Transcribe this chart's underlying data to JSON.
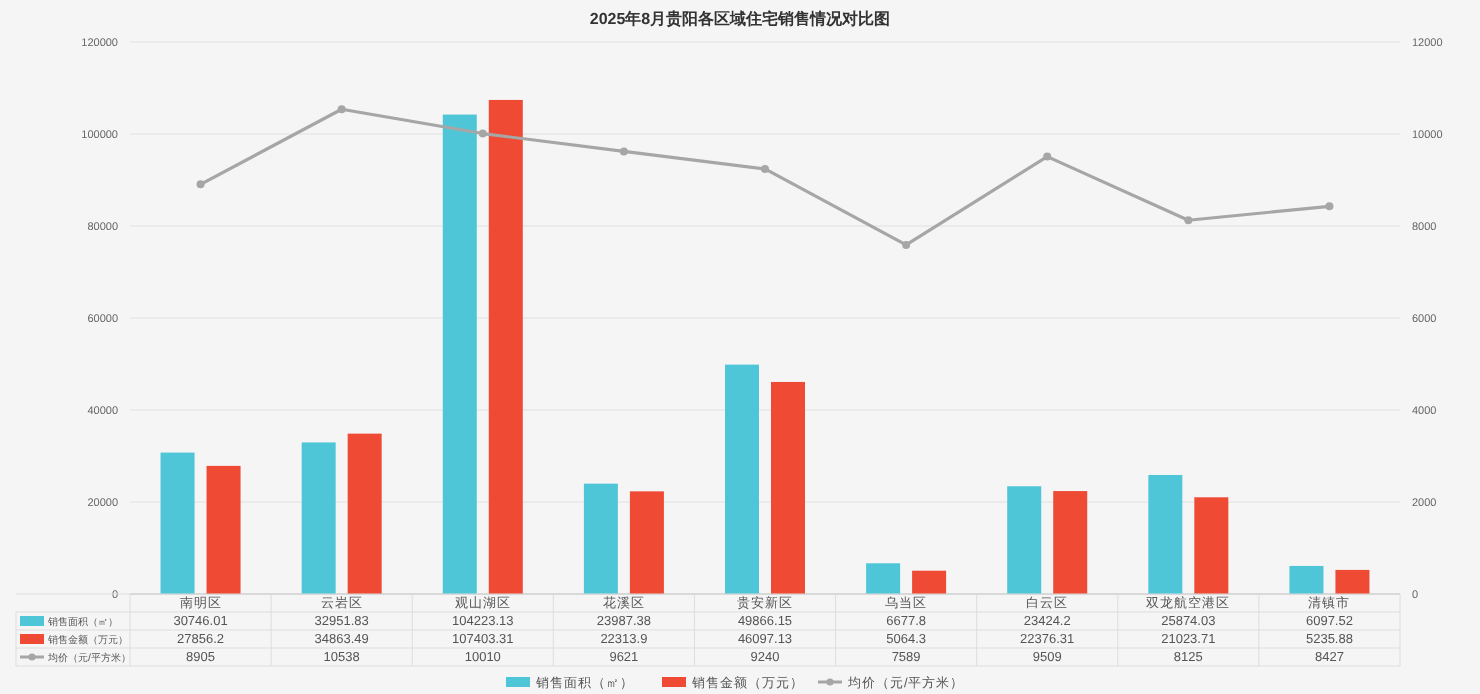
{
  "chart_data": {
    "type": "bar",
    "title": "2025年8月贵阳各区域住宅销售情况对比图",
    "categories": [
      "南明区",
      "云岩区",
      "观山湖区",
      "花溪区",
      "贵安新区",
      "乌当区",
      "白云区",
      "双龙航空港区",
      "清镇市"
    ],
    "series": [
      {
        "name": "销售面积（㎡）",
        "color": "#4fc6d8",
        "values": [
          30746.01,
          32951.83,
          104223.13,
          23987.38,
          49866.15,
          6677.8,
          23424.2,
          25874.03,
          6097.52
        ]
      },
      {
        "name": "销售金额（万元）",
        "color": "#ee4a34",
        "values": [
          27856.2,
          34863.49,
          107403.31,
          22313.9,
          46097.13,
          5064.3,
          22376.31,
          21023.71,
          5235.88
        ]
      },
      {
        "name": "均价（元/平方米）",
        "type": "line",
        "axis": "y2",
        "color": "#a6a6a6",
        "marker": "circle",
        "values": [
          8905,
          10538,
          10010,
          9621,
          9240,
          7589,
          9509,
          8125,
          8427
        ]
      }
    ],
    "ylim": [
      0,
      120000
    ],
    "yticks": [
      0,
      20000,
      40000,
      60000,
      80000,
      100000,
      120000
    ],
    "y2lim": [
      0,
      12000
    ],
    "y2ticks": [
      0,
      2000,
      4000,
      6000,
      8000,
      10000,
      12000
    ],
    "grid": "y",
    "legend": "bottom",
    "data_labels": true
  }
}
